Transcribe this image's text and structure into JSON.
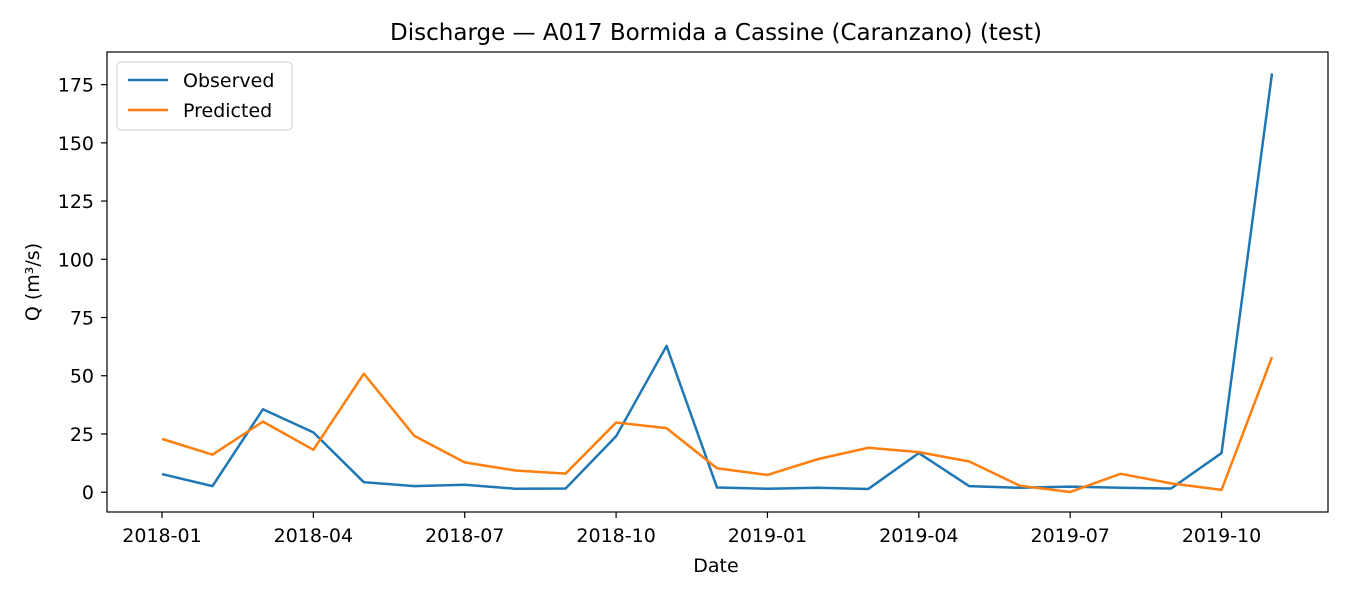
{
  "chart_data": {
    "type": "line",
    "title": "Discharge — A017 Bormida a Cassine (Caranzano) (test)",
    "xlabel": "Date",
    "ylabel": "Q (m³/s)",
    "x": [
      "2018-01",
      "2018-02",
      "2018-03",
      "2018-04",
      "2018-05",
      "2018-06",
      "2018-07",
      "2018-08",
      "2018-09",
      "2018-10",
      "2018-11",
      "2018-12",
      "2019-01",
      "2019-02",
      "2019-03",
      "2019-04",
      "2019-05",
      "2019-06",
      "2019-07",
      "2019-08",
      "2019-09",
      "2019-10",
      "2019-11"
    ],
    "x_ticks": [
      "2018-01",
      "2018-04",
      "2018-07",
      "2018-10",
      "2019-01",
      "2019-04",
      "2019-07",
      "2019-10"
    ],
    "y_ticks": [
      0,
      25,
      50,
      75,
      100,
      125,
      150,
      175
    ],
    "ylim": [
      -8.5,
      189
    ],
    "grid": false,
    "legend_position": "top-left",
    "series": [
      {
        "name": "Observed",
        "color": "#1f77b4",
        "values": [
          7.8,
          2.6,
          35.6,
          25.7,
          4.3,
          2.6,
          3.2,
          1.5,
          1.6,
          24.0,
          62.8,
          2.0,
          1.5,
          1.9,
          1.4,
          16.8,
          2.6,
          1.9,
          2.4,
          1.9,
          1.6,
          16.8,
          179.8
        ]
      },
      {
        "name": "Predicted",
        "color": "#ff7f0e",
        "values": [
          22.9,
          16.1,
          30.3,
          18.2,
          50.9,
          24.2,
          12.8,
          9.3,
          8.0,
          29.9,
          27.5,
          10.3,
          7.4,
          14.2,
          19.1,
          17.2,
          13.2,
          2.8,
          0.1,
          7.9,
          3.8,
          1.0,
          58.0
        ]
      }
    ]
  }
}
